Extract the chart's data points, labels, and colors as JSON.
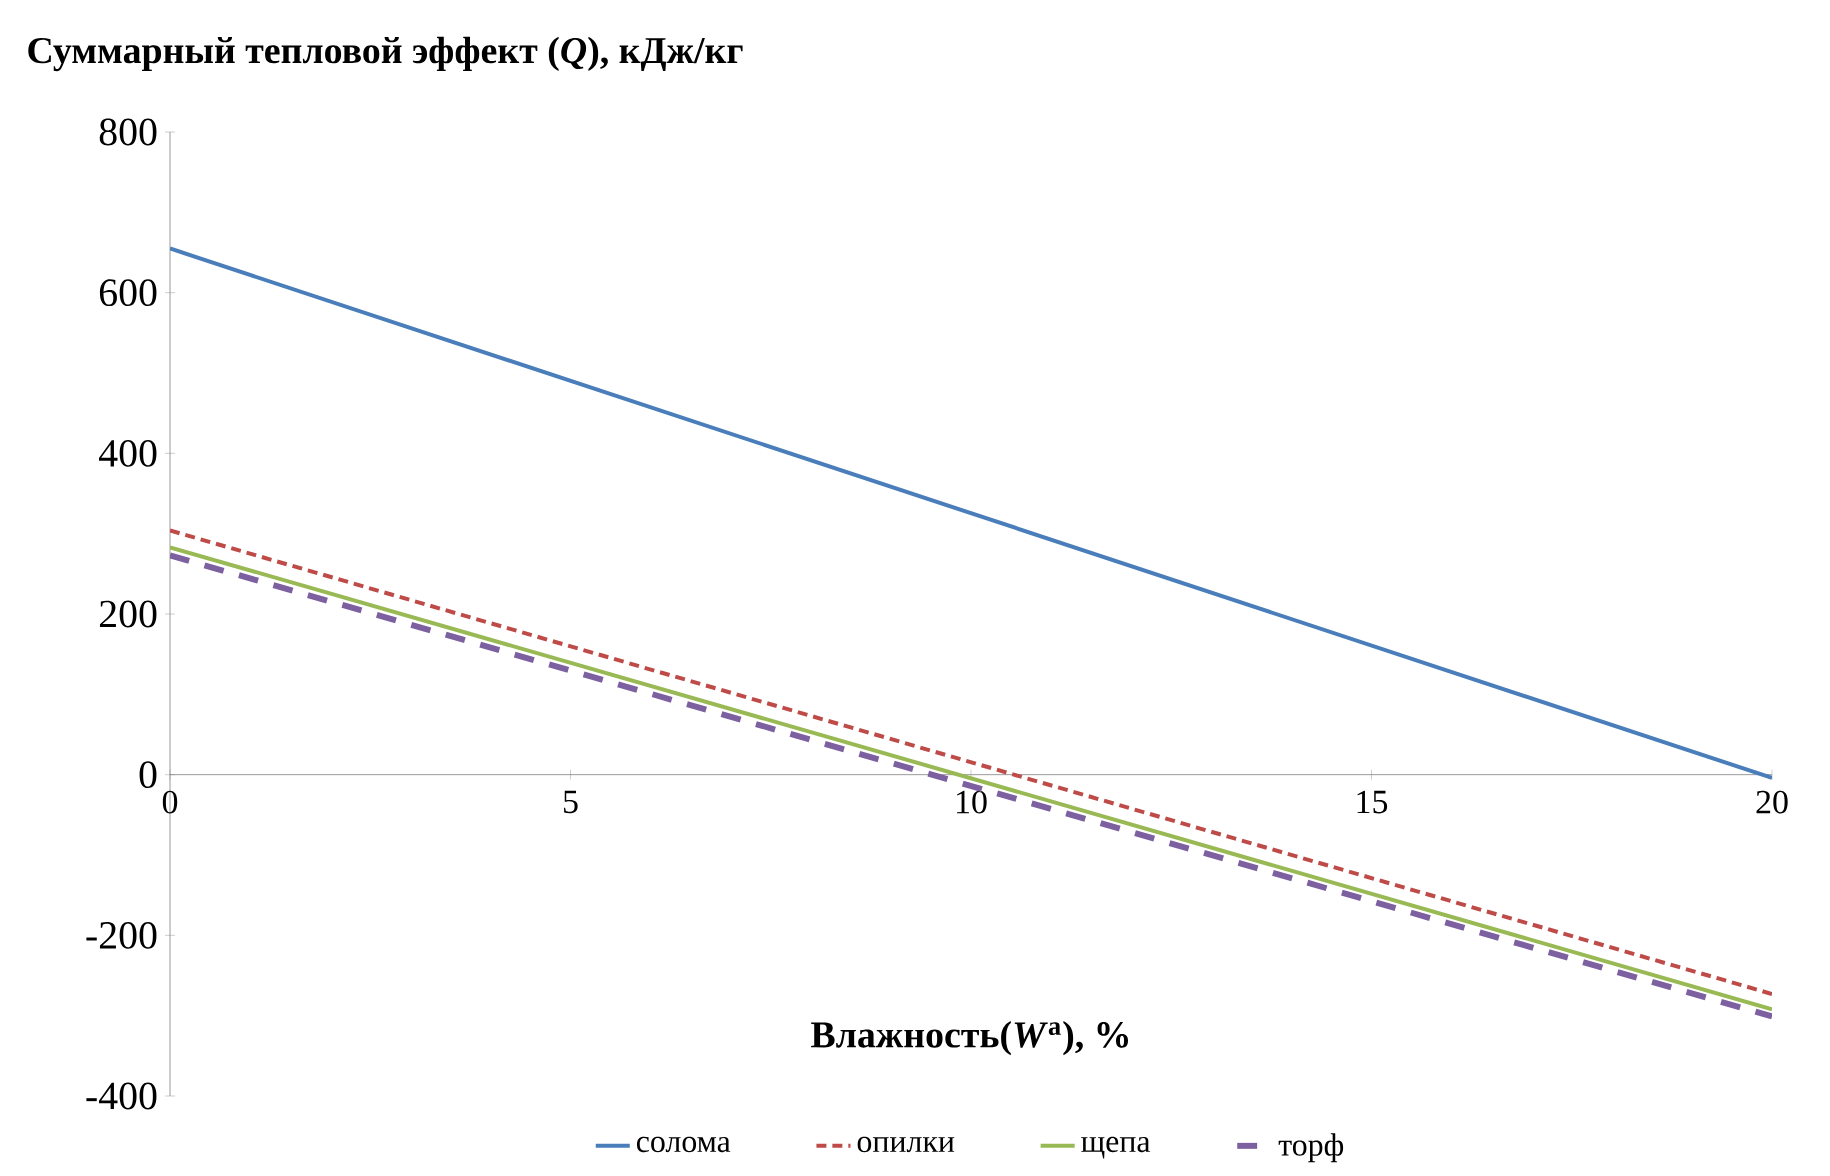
{
  "chart_data": {
    "type": "line",
    "ylabel": "Суммарный тепловой эффект (*Q*), кДж/кг",
    "xlabel": "Влажность(*W*$^{a}$), %",
    "x": [
      0,
      20
    ],
    "xlim": [
      0,
      20
    ],
    "xticks": [
      0,
      5,
      10,
      15,
      20
    ],
    "ylim": [
      -400,
      800
    ],
    "yticks": [
      -400,
      -200,
      0,
      200,
      400,
      600,
      800
    ],
    "grid": false,
    "legend": "bottom",
    "marker": "none",
    "series": [
      {
        "name": "солома",
        "color": "#4a7ebb",
        "line_style": "solid",
        "values": [
          655,
          -4
        ]
      },
      {
        "name": "опилки",
        "color": "#be4b48",
        "line_style": "dashed",
        "values": [
          304,
          -273
        ]
      },
      {
        "name": "щепа",
        "color": "#98b954",
        "line_style": "solid",
        "values": [
          283,
          -292
        ]
      },
      {
        "name": "торф",
        "color": "#7d60a0",
        "line_style": "dashed",
        "values": [
          273,
          -301
        ]
      }
    ]
  }
}
